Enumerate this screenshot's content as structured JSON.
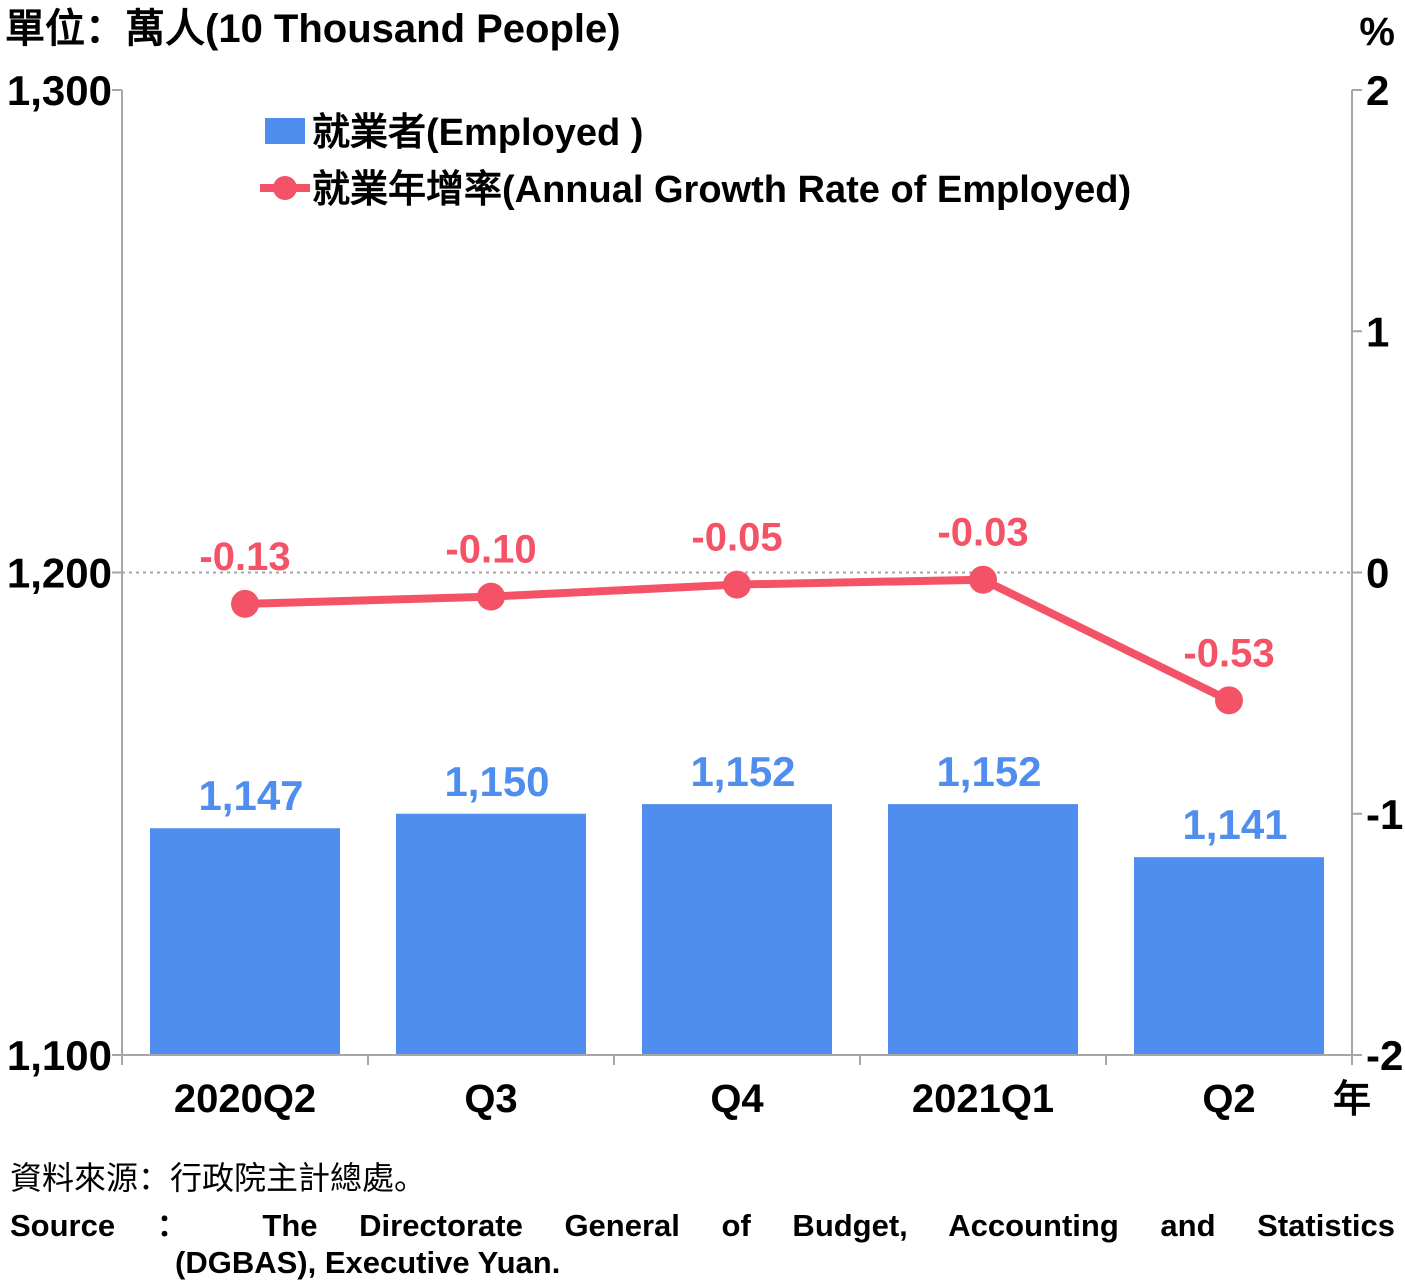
{
  "unit_left": "單位：萬人(10 Thousand People)",
  "unit_right": "%",
  "x_axis_suffix": "年",
  "source": {
    "zh": "資料來源：行政院主計總處。",
    "en_line1": "Source ： The Directorate General of Budget, Accounting and Statistics",
    "en_line2": "(DGBAS), Executive Yuan."
  },
  "colors": {
    "bar": "#4f8dee",
    "line": "#f45266",
    "axis": "#a6a6a6",
    "grid": "#a6a6a6"
  },
  "chart_data": {
    "type": "bar",
    "categories": [
      "2020Q2",
      "Q3",
      "Q4",
      "2021Q1",
      "Q2"
    ],
    "series": [
      {
        "name": "就業者(Employed )",
        "type": "bar",
        "axis": "left",
        "values": [
          1147,
          1150,
          1152,
          1152,
          1141
        ],
        "labels": [
          "1,147",
          "1,150",
          "1,152",
          "1,152",
          "1,141"
        ]
      },
      {
        "name": "就業年增率(Annual Growth Rate of Employed)",
        "type": "line",
        "axis": "right",
        "values": [
          -0.13,
          -0.1,
          -0.05,
          -0.03,
          -0.53
        ],
        "labels": [
          "-0.13",
          "-0.10",
          "-0.05",
          "-0.03",
          "-0.53"
        ]
      }
    ],
    "y_left": {
      "min": 1100,
      "max": 1300,
      "ticks": [
        1100,
        1200,
        1300
      ],
      "tick_labels": [
        "1,100",
        "1,200",
        "1,300"
      ]
    },
    "y_right": {
      "min": -2,
      "max": 2,
      "ticks": [
        -2,
        -1,
        0,
        1,
        2
      ],
      "tick_labels": [
        "-2",
        "-1",
        "0",
        "1",
        "2"
      ]
    },
    "gridline": {
      "axis": "right",
      "value": 0,
      "style": "dotted"
    },
    "legend": "top-left"
  }
}
